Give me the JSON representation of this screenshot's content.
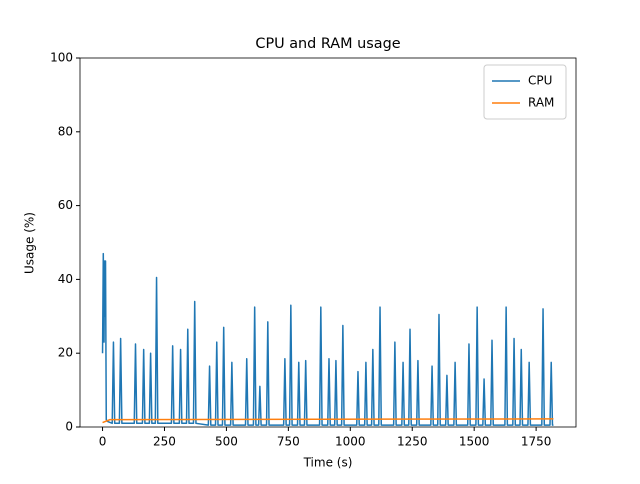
{
  "chart_data": {
    "type": "line",
    "title": "CPU and RAM usage",
    "xlabel": "Time (s)",
    "ylabel": "Usage (%)",
    "xlim": [
      -91,
      1911
    ],
    "ylim": [
      0,
      100
    ],
    "xticks": [
      0,
      250,
      500,
      750,
      1000,
      1250,
      1500,
      1750
    ],
    "yticks": [
      0,
      20,
      40,
      60,
      80,
      100
    ],
    "legend": "upper right",
    "series": [
      {
        "name": "CPU",
        "color": "#1f77b4",
        "x": [
          0,
          3,
          6,
          8,
          10,
          12,
          15,
          20,
          39,
          44,
          49,
          68,
          73,
          78,
          128,
          133,
          138,
          161,
          166,
          171,
          189,
          194,
          199,
          213,
          218,
          223,
          278,
          283,
          288,
          310,
          315,
          320,
          339,
          344,
          349,
          367,
          372,
          377,
          427,
          432,
          437,
          456,
          461,
          466,
          484,
          489,
          494,
          517,
          522,
          527,
          577,
          582,
          587,
          609,
          614,
          619,
          630,
          635,
          640,
          662,
          667,
          672,
          731,
          736,
          741,
          755,
          760,
          765,
          787,
          792,
          797,
          815,
          820,
          825,
          876,
          881,
          886,
          909,
          914,
          919,
          937,
          942,
          947,
          965,
          970,
          975,
          1026,
          1031,
          1036,
          1058,
          1063,
          1068,
          1086,
          1091,
          1096,
          1115,
          1120,
          1125,
          1175,
          1180,
          1185,
          1208,
          1213,
          1218,
          1236,
          1241,
          1246,
          1268,
          1273,
          1278,
          1325,
          1330,
          1335,
          1353,
          1358,
          1363,
          1385,
          1390,
          1395,
          1418,
          1423,
          1428,
          1474,
          1479,
          1484,
          1507,
          1512,
          1517,
          1535,
          1540,
          1545,
          1567,
          1572,
          1577,
          1624,
          1629,
          1634,
          1656,
          1661,
          1666,
          1685,
          1690,
          1695,
          1717,
          1722,
          1727,
          1773,
          1778,
          1783,
          1806,
          1811,
          1816,
          1820
        ],
        "values": [
          20,
          47,
          23,
          45,
          30,
          45,
          2,
          1.5,
          1,
          23,
          1,
          1,
          24,
          1,
          1,
          22.5,
          1,
          1,
          21,
          1,
          1,
          20,
          1,
          1,
          40.5,
          1,
          1,
          22,
          1,
          1,
          21,
          1,
          1,
          26.5,
          1,
          1,
          34,
          1,
          0.5,
          16.5,
          0.5,
          0.5,
          23,
          0.5,
          0.5,
          27,
          0.5,
          0.5,
          17.5,
          0.5,
          0.5,
          18.5,
          0.5,
          0.5,
          32.5,
          0.5,
          0.5,
          11,
          0.5,
          0.5,
          28.5,
          0.5,
          0.5,
          18.5,
          0.5,
          0.5,
          33,
          0.5,
          0.5,
          17.5,
          0.5,
          0.5,
          18,
          0.5,
          0.5,
          32.5,
          0.5,
          0.5,
          18.5,
          0.5,
          0.5,
          18,
          0.5,
          0.5,
          27.5,
          0.5,
          0.5,
          15,
          0.5,
          0.5,
          17.5,
          0.5,
          0.5,
          21,
          0.5,
          0.5,
          32.5,
          0.5,
          0.5,
          23,
          0.5,
          0.5,
          17.5,
          0.5,
          0.5,
          26.5,
          0.5,
          0.5,
          18,
          0.5,
          0.5,
          16.5,
          0.5,
          0.5,
          30.5,
          0.5,
          0.5,
          14,
          0.5,
          0.5,
          17.5,
          0.5,
          0.5,
          22.5,
          0.5,
          0.5,
          32.5,
          0.5,
          0.5,
          13,
          0.5,
          0.5,
          23.5,
          0.5,
          0.5,
          32.5,
          0.5,
          0.5,
          24,
          0.5,
          0.5,
          21,
          0.5,
          0.5,
          17.5,
          0.5,
          0.5,
          32,
          0.5,
          0.5,
          17.5,
          0.5,
          0.5
        ]
      },
      {
        "name": "RAM",
        "color": "#ff7f0e",
        "x": [
          0,
          30,
          1820
        ],
        "values": [
          1.2,
          2,
          2.2
        ]
      }
    ]
  }
}
